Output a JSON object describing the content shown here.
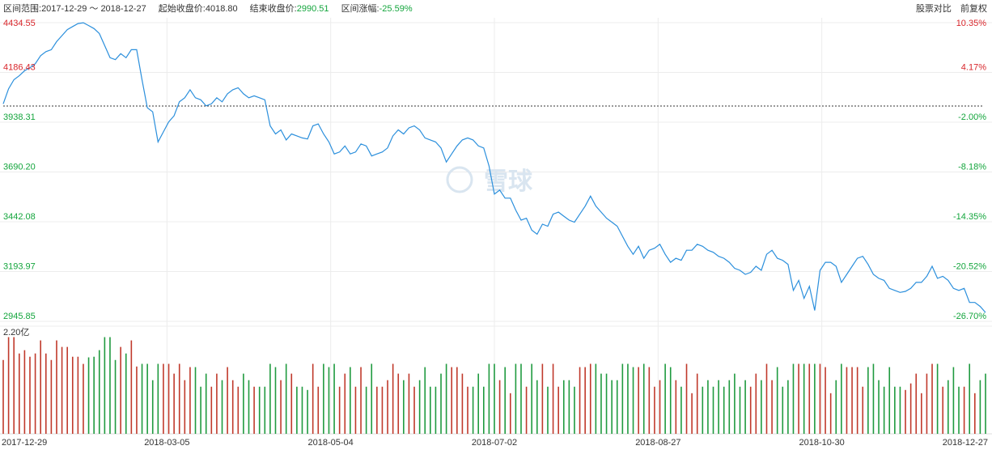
{
  "header": {
    "range_label": "区间范围:",
    "range_value": "2017-12-29 ～ 2018-12-27",
    "start_label": "起始收盘价:",
    "start_value": "4018.80",
    "end_label": "结束收盘价:",
    "end_value": "2990.51",
    "change_label": "区间涨幅:",
    "change_value": "-25.59%",
    "compare_button": "股票对比",
    "adjust_button": "前复权"
  },
  "watermark": "雪球",
  "colors": {
    "line": "#2b8fdc",
    "up": "#c0392b",
    "down": "#1f9a3f",
    "grid": "#ececec"
  },
  "chart_data": {
    "type": "line",
    "price_axis": {
      "ylim": [
        2945.85,
        4434.55
      ],
      "left_ticks": [
        "4434.55",
        "4186.43",
        "3938.31",
        "3690.20",
        "3442.08",
        "3193.97",
        "2945.85"
      ],
      "left_tick_colors": [
        "red",
        "red",
        "green",
        "green",
        "green",
        "green",
        "green"
      ],
      "right_ticks": [
        "10.35%",
        "4.17%",
        "-2.00%",
        "-8.18%",
        "-14.35%",
        "-20.52%",
        "-26.70%"
      ],
      "right_tick_colors": [
        "red",
        "red",
        "green",
        "green",
        "green",
        "green",
        "green"
      ],
      "baseline": 4018.8
    },
    "volume_axis": {
      "max_label": "2.20亿"
    },
    "x_tick_labels": [
      "2017-12-29",
      "2018-03-05",
      "2018-05-04",
      "2018-07-02",
      "2018-08-27",
      "2018-10-30",
      "2018-12-27"
    ],
    "close": [
      4030,
      4105,
      4150,
      4170,
      4195,
      4210,
      4230,
      4270,
      4290,
      4300,
      4340,
      4370,
      4400,
      4415,
      4430,
      4434,
      4420,
      4405,
      4380,
      4320,
      4260,
      4250,
      4280,
      4260,
      4300,
      4300,
      4150,
      4010,
      3990,
      3840,
      3890,
      3940,
      3970,
      4040,
      4060,
      4100,
      4060,
      4050,
      4020,
      4030,
      4060,
      4040,
      4080,
      4100,
      4110,
      4080,
      4060,
      4070,
      4060,
      4050,
      3920,
      3880,
      3900,
      3850,
      3880,
      3870,
      3860,
      3855,
      3920,
      3930,
      3880,
      3840,
      3780,
      3790,
      3820,
      3780,
      3790,
      3830,
      3820,
      3770,
      3780,
      3790,
      3810,
      3870,
      3900,
      3880,
      3910,
      3920,
      3900,
      3860,
      3850,
      3840,
      3810,
      3740,
      3780,
      3820,
      3850,
      3860,
      3850,
      3820,
      3810,
      3720,
      3580,
      3600,
      3560,
      3560,
      3500,
      3450,
      3460,
      3400,
      3380,
      3430,
      3420,
      3480,
      3490,
      3470,
      3450,
      3440,
      3480,
      3520,
      3570,
      3520,
      3490,
      3460,
      3440,
      3420,
      3370,
      3320,
      3280,
      3320,
      3260,
      3300,
      3310,
      3330,
      3280,
      3240,
      3260,
      3250,
      3300,
      3300,
      3330,
      3320,
      3300,
      3290,
      3270,
      3260,
      3240,
      3210,
      3200,
      3180,
      3190,
      3220,
      3200,
      3280,
      3300,
      3260,
      3250,
      3230,
      3100,
      3150,
      3060,
      3120,
      3000,
      3200,
      3240,
      3240,
      3220,
      3140,
      3180,
      3220,
      3260,
      3270,
      3230,
      3180,
      3160,
      3150,
      3110,
      3100,
      3090,
      3095,
      3110,
      3140,
      3140,
      3170,
      3220,
      3160,
      3170,
      3150,
      3110,
      3100,
      3110,
      3040,
      3040,
      3020,
      2990
    ]
  }
}
